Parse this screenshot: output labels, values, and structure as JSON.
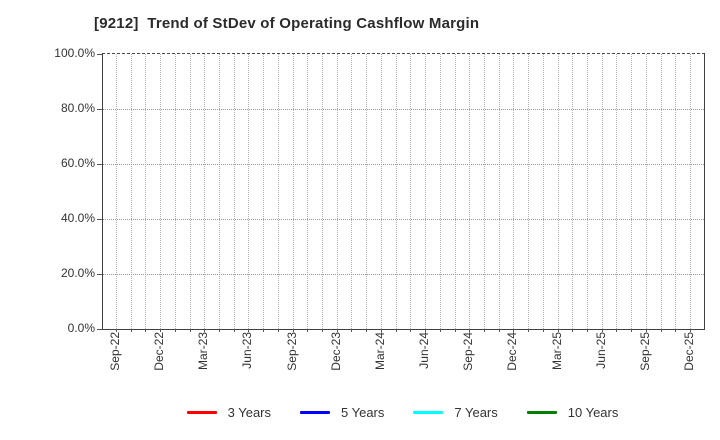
{
  "chart_data": {
    "type": "line",
    "title": "[9212]  Trend of StDev of Operating Cashflow Margin",
    "x_tick_labels": [
      "Sep-22",
      "Dec-22",
      "Mar-23",
      "Jun-23",
      "Sep-23",
      "Dec-23",
      "Mar-24",
      "Jun-24",
      "Sep-24",
      "Dec-24",
      "Mar-25",
      "Jun-25",
      "Sep-25",
      "Dec-25"
    ],
    "x_minor_gridlines": "monthly",
    "y_tick_labels": [
      "100.0%",
      "80.0%",
      "60.0%",
      "40.0%",
      "20.0%",
      "0.0%"
    ],
    "ylim": [
      0,
      100
    ],
    "y_unit": "%",
    "grid": true,
    "legend_position": "bottom-center",
    "series": [
      {
        "name": "3 Years",
        "color": "#ff0000",
        "values": []
      },
      {
        "name": "5 Years",
        "color": "#0000ff",
        "values": []
      },
      {
        "name": "7 Years",
        "color": "#00ffff",
        "values": []
      },
      {
        "name": "10 Years",
        "color": "#008000",
        "values": []
      }
    ],
    "plotted_points_visible": false
  },
  "colors": {
    "background": "#ffffff",
    "spine": "#3f3f3f",
    "gridline_vertical": "#b0b0b0",
    "gridline_horizontal": "#999999",
    "text": "#333333",
    "title_text": "#2b2b2b"
  }
}
